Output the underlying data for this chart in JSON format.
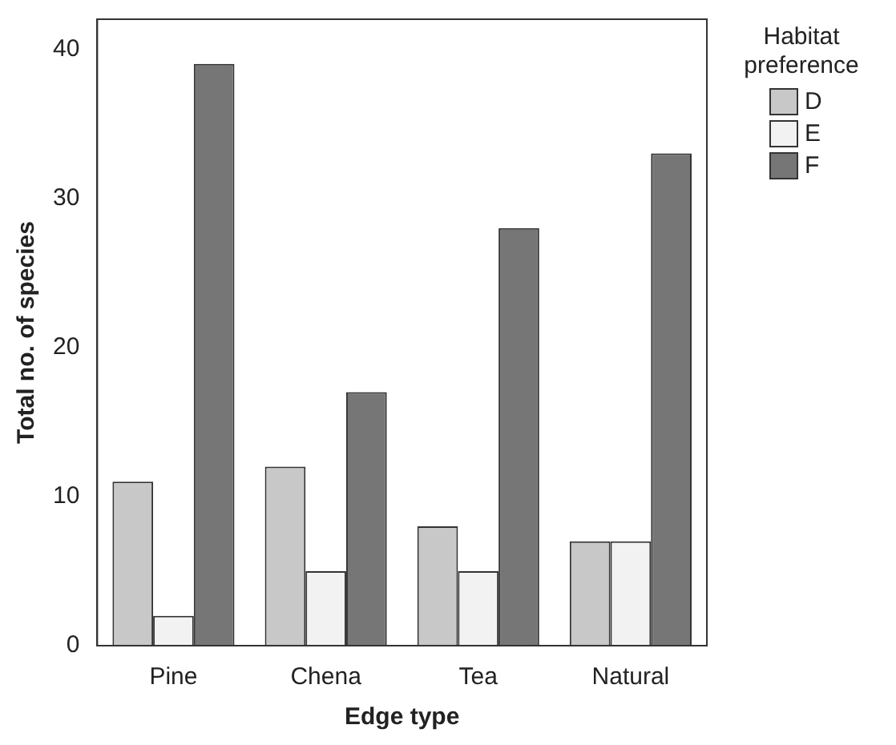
{
  "chart_data": {
    "type": "bar",
    "xlabel": "Edge type",
    "ylabel": "Total no. of species",
    "legend_title": "Habitat preference",
    "categories": [
      "Pine",
      "Chena",
      "Tea",
      "Natural"
    ],
    "series": [
      {
        "name": "D",
        "color": "#c8c8c8",
        "values": [
          11,
          12,
          8,
          7
        ]
      },
      {
        "name": "E",
        "color": "#f2f2f2",
        "values": [
          2,
          5,
          5,
          7
        ]
      },
      {
        "name": "F",
        "color": "#767676",
        "values": [
          39,
          17,
          28,
          33
        ]
      }
    ],
    "ylim": [
      0,
      42
    ],
    "yticks": [
      0,
      10,
      20,
      30,
      40
    ],
    "grid": false,
    "legend": "right"
  }
}
